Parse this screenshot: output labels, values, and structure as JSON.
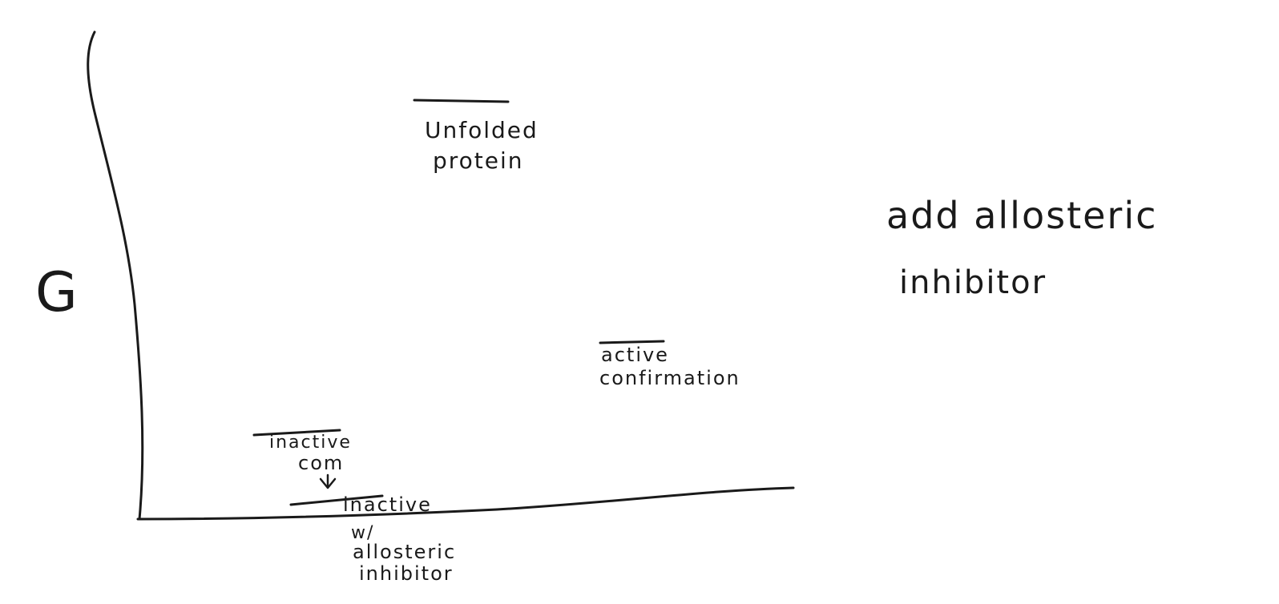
{
  "axis": {
    "y_label": "G"
  },
  "states": {
    "unfolded": {
      "line1": "Unfolded",
      "line2": "protein"
    },
    "active": {
      "line1": "active",
      "line2": "confirmation"
    },
    "inactive": {
      "line1": "inactive",
      "line2": "com"
    },
    "inactive_inhibited": {
      "line1": "inactive",
      "line2": "w/",
      "line3": "allosteric",
      "line4": "inhibitor"
    }
  },
  "note": {
    "line1": "add allosteric",
    "line2": "inhibitor"
  },
  "ink_color": "#1a1a1a"
}
